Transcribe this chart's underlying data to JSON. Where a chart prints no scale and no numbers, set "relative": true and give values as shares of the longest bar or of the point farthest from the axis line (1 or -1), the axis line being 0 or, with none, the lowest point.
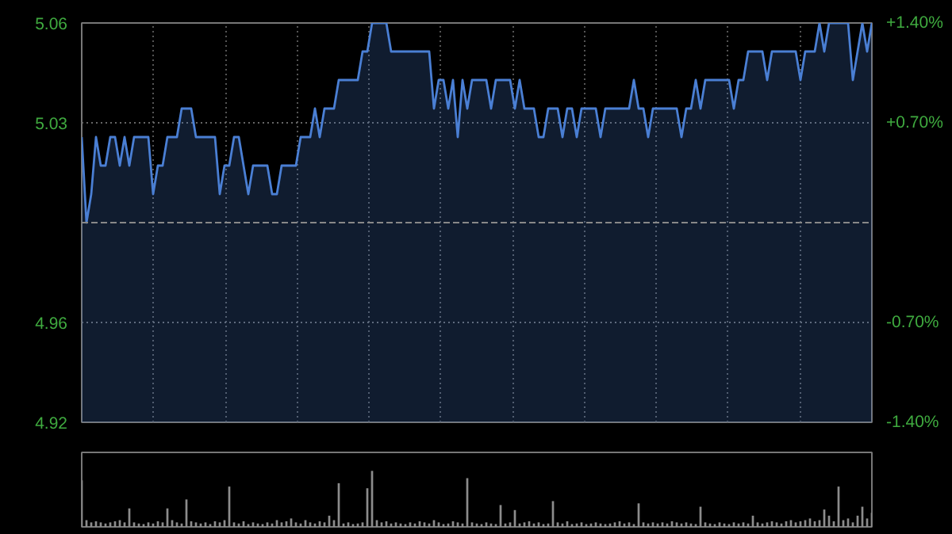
{
  "chart_data": [
    {
      "type": "area",
      "categories": [
        null,
        null,
        null,
        null,
        null,
        null,
        null,
        null,
        null,
        null,
        null,
        null,
        null,
        null,
        null,
        null,
        null,
        null,
        null,
        null,
        null,
        null,
        null,
        null,
        null,
        null,
        null,
        null,
        null,
        null,
        null,
        null,
        null,
        null,
        null,
        null,
        null,
        null,
        null,
        null,
        null,
        null,
        null,
        null,
        null,
        null,
        null,
        null,
        null,
        null,
        null,
        null,
        null,
        null,
        null,
        null,
        null,
        null,
        null,
        null,
        null,
        null,
        null,
        null,
        null,
        null,
        null,
        null,
        null,
        null,
        null,
        null,
        null,
        null,
        null,
        null,
        null,
        null,
        null,
        null,
        null,
        null,
        null,
        null,
        null,
        null,
        null,
        null,
        null,
        null,
        null,
        null,
        null,
        null,
        null,
        null,
        null,
        null,
        null,
        null,
        null,
        null,
        null,
        null,
        null,
        null,
        null,
        null,
        null,
        null,
        null,
        null,
        null,
        null,
        null,
        null,
        null,
        null,
        null,
        null,
        null,
        null,
        null,
        null,
        null,
        null,
        null,
        null,
        null,
        null,
        null,
        null,
        null,
        null,
        null,
        null,
        null,
        null,
        null,
        null,
        null,
        null,
        null,
        null,
        null,
        null,
        null,
        null,
        null,
        null,
        null,
        null,
        null,
        null,
        null,
        null,
        null,
        null,
        null,
        null,
        null,
        null,
        null,
        null,
        null,
        null,
        null
      ],
      "series": [
        {
          "color": "#4a7fd4",
          "values": [
            5.02,
            4.99,
            5.0,
            5.02,
            5.01,
            5.01,
            5.02,
            5.02,
            5.01,
            5.02,
            5.01,
            5.02,
            5.02,
            5.02,
            5.02,
            5.0,
            5.01,
            5.01,
            5.02,
            5.02,
            5.02,
            5.03,
            5.03,
            5.03,
            5.02,
            5.02,
            5.02,
            5.02,
            5.02,
            5.0,
            5.01,
            5.01,
            5.02,
            5.02,
            5.01,
            5.0,
            5.01,
            5.01,
            5.01,
            5.01,
            5.0,
            5.0,
            5.01,
            5.01,
            5.01,
            5.01,
            5.02,
            5.02,
            5.02,
            5.03,
            5.02,
            5.03,
            5.03,
            5.03,
            5.04,
            5.04,
            5.04,
            5.04,
            5.04,
            5.05,
            5.05,
            5.06,
            5.06,
            5.06,
            5.06,
            5.05,
            5.05,
            5.05,
            5.05,
            5.05,
            5.05,
            5.05,
            5.05,
            5.05,
            5.03,
            5.04,
            5.04,
            5.03,
            5.04,
            5.02,
            5.04,
            5.03,
            5.04,
            5.04,
            5.04,
            5.04,
            5.03,
            5.04,
            5.04,
            5.04,
            5.04,
            5.03,
            5.04,
            5.03,
            5.03,
            5.03,
            5.02,
            5.02,
            5.03,
            5.03,
            5.03,
            5.02,
            5.03,
            5.03,
            5.02,
            5.03,
            5.03,
            5.03,
            5.03,
            5.02,
            5.03,
            5.03,
            5.03,
            5.03,
            5.03,
            5.03,
            5.04,
            5.03,
            5.03,
            5.02,
            5.03,
            5.03,
            5.03,
            5.03,
            5.03,
            5.03,
            5.02,
            5.03,
            5.03,
            5.04,
            5.03,
            5.04,
            5.04,
            5.04,
            5.04,
            5.04,
            5.04,
            5.03,
            5.04,
            5.04,
            5.05,
            5.05,
            5.05,
            5.05,
            5.04,
            5.05,
            5.05,
            5.05,
            5.05,
            5.05,
            5.05,
            5.04,
            5.05,
            5.05,
            5.05,
            5.06,
            5.05,
            5.06,
            5.06,
            5.06,
            5.06,
            5.06,
            5.04,
            5.05,
            5.06,
            5.05,
            5.06
          ]
        }
      ],
      "ylim": [
        4.92,
        5.06
      ],
      "yticks": [
        {
          "value": 4.92,
          "label": "4.92"
        },
        {
          "value": 4.955,
          "label": "4.96"
        },
        {
          "value": 5.025,
          "label": "5.03"
        },
        {
          "value": 5.06,
          "label": "5.06"
        }
      ],
      "y2lim": [
        -1.4,
        1.4
      ],
      "y2ticks": [
        {
          "value": -1.4,
          "label": "-1.40%"
        },
        {
          "value": -0.7,
          "label": "-0.70%"
        },
        {
          "value": 0.7,
          "label": "+0.70%"
        },
        {
          "value": 1.4,
          "label": "+1.40%"
        }
      ],
      "ref_lines": [
        {
          "axis": "y",
          "value": 4.99,
          "color": "#888888",
          "line_style": "dashed"
        }
      ],
      "grid": true
    },
    {
      "type": "bar",
      "relative": true,
      "color": "#8c8c8c",
      "categories": [
        null,
        null,
        null,
        null,
        null,
        null,
        null,
        null,
        null,
        null,
        null,
        null,
        null,
        null,
        null,
        null,
        null,
        null,
        null,
        null,
        null,
        null,
        null,
        null,
        null,
        null,
        null,
        null,
        null,
        null,
        null,
        null,
        null,
        null,
        null,
        null,
        null,
        null,
        null,
        null,
        null,
        null,
        null,
        null,
        null,
        null,
        null,
        null,
        null,
        null,
        null,
        null,
        null,
        null,
        null,
        null,
        null,
        null,
        null,
        null,
        null,
        null,
        null,
        null,
        null,
        null,
        null,
        null,
        null,
        null,
        null,
        null,
        null,
        null,
        null,
        null,
        null,
        null,
        null,
        null,
        null,
        null,
        null,
        null,
        null,
        null,
        null,
        null,
        null,
        null,
        null,
        null,
        null,
        null,
        null,
        null,
        null,
        null,
        null,
        null,
        null,
        null,
        null,
        null,
        null,
        null,
        null,
        null,
        null,
        null,
        null,
        null,
        null,
        null,
        null,
        null,
        null,
        null,
        null,
        null,
        null,
        null,
        null,
        null,
        null,
        null,
        null,
        null,
        null,
        null,
        null,
        null,
        null,
        null,
        null,
        null,
        null,
        null,
        null,
        null,
        null,
        null,
        null,
        null,
        null,
        null,
        null,
        null,
        null,
        null,
        null,
        null,
        null,
        null,
        null,
        null,
        null,
        null,
        null,
        null,
        null,
        null,
        null,
        null,
        null,
        null,
        null
      ],
      "values": [
        0.83,
        0.12,
        0.08,
        0.1,
        0.08,
        0.06,
        0.08,
        0.1,
        0.12,
        0.08,
        0.33,
        0.08,
        0.06,
        0.05,
        0.08,
        0.06,
        0.1,
        0.08,
        0.33,
        0.12,
        0.08,
        0.06,
        0.49,
        0.1,
        0.08,
        0.06,
        0.08,
        0.05,
        0.1,
        0.08,
        0.12,
        0.72,
        0.08,
        0.06,
        0.1,
        0.05,
        0.08,
        0.06,
        0.05,
        0.08,
        0.06,
        0.12,
        0.08,
        0.1,
        0.15,
        0.08,
        0.06,
        0.12,
        0.08,
        0.06,
        0.1,
        0.08,
        0.2,
        0.12,
        0.78,
        0.06,
        0.08,
        0.05,
        0.06,
        0.08,
        0.69,
        1,
        0.12,
        0.08,
        0.1,
        0.06,
        0.08,
        0.06,
        0.05,
        0.08,
        0.06,
        0.1,
        0.08,
        0.06,
        0.12,
        0.08,
        0.05,
        0.06,
        0.1,
        0.08,
        0.06,
        0.87,
        0.08,
        0.06,
        0.05,
        0.08,
        0.06,
        0.05,
        0.39,
        0.06,
        0.08,
        0.3,
        0.06,
        0.08,
        0.1,
        0.06,
        0.08,
        0.05,
        0.06,
        0.46,
        0.08,
        0.06,
        0.1,
        0.05,
        0.06,
        0.08,
        0.05,
        0.06,
        0.08,
        0.06,
        0.05,
        0.06,
        0.08,
        0.1,
        0.06,
        0.08,
        0.05,
        0.42,
        0.08,
        0.06,
        0.08,
        0.06,
        0.08,
        0.06,
        0.1,
        0.08,
        0.06,
        0.08,
        0.06,
        0.05,
        0.36,
        0.08,
        0.06,
        0.05,
        0.08,
        0.06,
        0.05,
        0.08,
        0.06,
        0.08,
        0.06,
        0.2,
        0.08,
        0.06,
        0.08,
        0.1,
        0.08,
        0.06,
        0.1,
        0.12,
        0.08,
        0.1,
        0.12,
        0.15,
        0.1,
        0.12,
        0.31,
        0.2,
        0.1,
        0.72,
        0.12,
        0.15,
        0.08,
        0.2,
        0.36,
        0.15,
        0.25
      ]
    }
  ]
}
